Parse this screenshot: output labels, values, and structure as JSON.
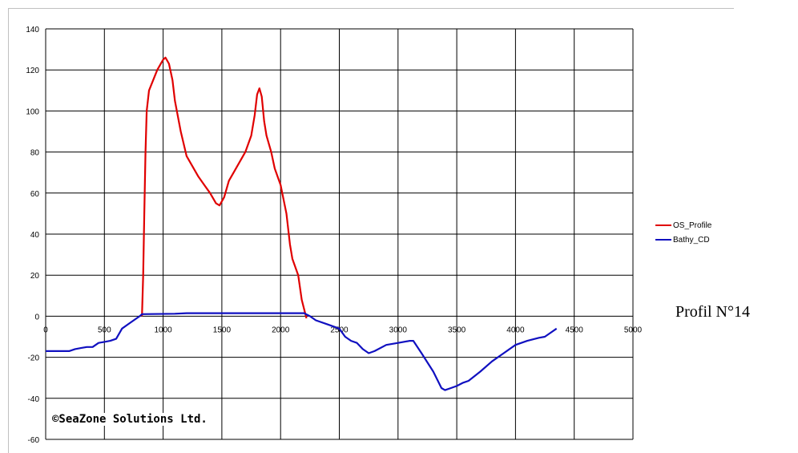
{
  "chart_data": {
    "type": "line",
    "xlim": [
      0,
      5000
    ],
    "ylim": [
      -60,
      140
    ],
    "x_ticks": [
      "0",
      "500",
      "1000",
      "1500",
      "2000",
      "2500",
      "3000",
      "3500",
      "4000",
      "4500",
      "5000"
    ],
    "y_ticks": [
      "140",
      "120",
      "100",
      "80",
      "60",
      "40",
      "20",
      "0",
      "-20",
      "-40",
      "-60"
    ],
    "grid": true,
    "legend_position": "right",
    "series": [
      {
        "name": "OS_Profile",
        "color": "#e00000",
        "points": [
          [
            820,
            0
          ],
          [
            830,
            20
          ],
          [
            840,
            50
          ],
          [
            850,
            80
          ],
          [
            860,
            100
          ],
          [
            880,
            110
          ],
          [
            950,
            120
          ],
          [
            1000,
            125
          ],
          [
            1020,
            126
          ],
          [
            1050,
            123
          ],
          [
            1080,
            115
          ],
          [
            1100,
            105
          ],
          [
            1150,
            90
          ],
          [
            1200,
            78
          ],
          [
            1300,
            68
          ],
          [
            1350,
            64
          ],
          [
            1400,
            60
          ],
          [
            1450,
            55
          ],
          [
            1480,
            54
          ],
          [
            1520,
            58
          ],
          [
            1560,
            66
          ],
          [
            1600,
            70
          ],
          [
            1700,
            80
          ],
          [
            1750,
            88
          ],
          [
            1780,
            98
          ],
          [
            1800,
            108
          ],
          [
            1820,
            111
          ],
          [
            1840,
            107
          ],
          [
            1860,
            95
          ],
          [
            1880,
            88
          ],
          [
            1920,
            80
          ],
          [
            1950,
            72
          ],
          [
            2000,
            64
          ],
          [
            2050,
            50
          ],
          [
            2080,
            35
          ],
          [
            2100,
            28
          ],
          [
            2150,
            20
          ],
          [
            2180,
            8
          ],
          [
            2220,
            -1
          ]
        ]
      },
      {
        "name": "Bathy_CD",
        "color": "#1010c0",
        "points": [
          [
            0,
            -17
          ],
          [
            200,
            -17
          ],
          [
            250,
            -16
          ],
          [
            300,
            -15.5
          ],
          [
            350,
            -15
          ],
          [
            400,
            -15
          ],
          [
            450,
            -13
          ],
          [
            500,
            -12.5
          ],
          [
            550,
            -12
          ],
          [
            600,
            -11
          ],
          [
            650,
            -6
          ],
          [
            700,
            -4
          ],
          [
            750,
            -2
          ],
          [
            800,
            0
          ],
          [
            820,
            1
          ],
          [
            1100,
            1.2
          ],
          [
            1200,
            1.5
          ],
          [
            2000,
            1.5
          ],
          [
            2200,
            1.5
          ],
          [
            2250,
            0
          ],
          [
            2300,
            -2
          ],
          [
            2400,
            -4
          ],
          [
            2500,
            -6
          ],
          [
            2550,
            -10
          ],
          [
            2600,
            -12
          ],
          [
            2650,
            -13
          ],
          [
            2700,
            -16
          ],
          [
            2750,
            -18
          ],
          [
            2800,
            -17
          ],
          [
            2900,
            -14
          ],
          [
            3000,
            -13
          ],
          [
            3100,
            -12
          ],
          [
            3130,
            -12
          ],
          [
            3200,
            -18
          ],
          [
            3300,
            -27
          ],
          [
            3370,
            -35
          ],
          [
            3400,
            -36
          ],
          [
            3450,
            -35
          ],
          [
            3500,
            -34
          ],
          [
            3550,
            -32.5
          ],
          [
            3600,
            -31.5
          ],
          [
            3700,
            -27
          ],
          [
            3800,
            -22
          ],
          [
            3900,
            -18
          ],
          [
            4000,
            -14
          ],
          [
            4100,
            -12
          ],
          [
            4200,
            -10.5
          ],
          [
            4250,
            -10
          ],
          [
            4300,
            -8
          ],
          [
            4350,
            -6
          ]
        ]
      }
    ]
  },
  "legend": [
    {
      "label": "OS_Profile",
      "color": "#e00000"
    },
    {
      "label": "Bathy_CD",
      "color": "#1010c0"
    }
  ],
  "caption": "Profil N°14",
  "copyright": "©SeaZone Solutions Ltd."
}
